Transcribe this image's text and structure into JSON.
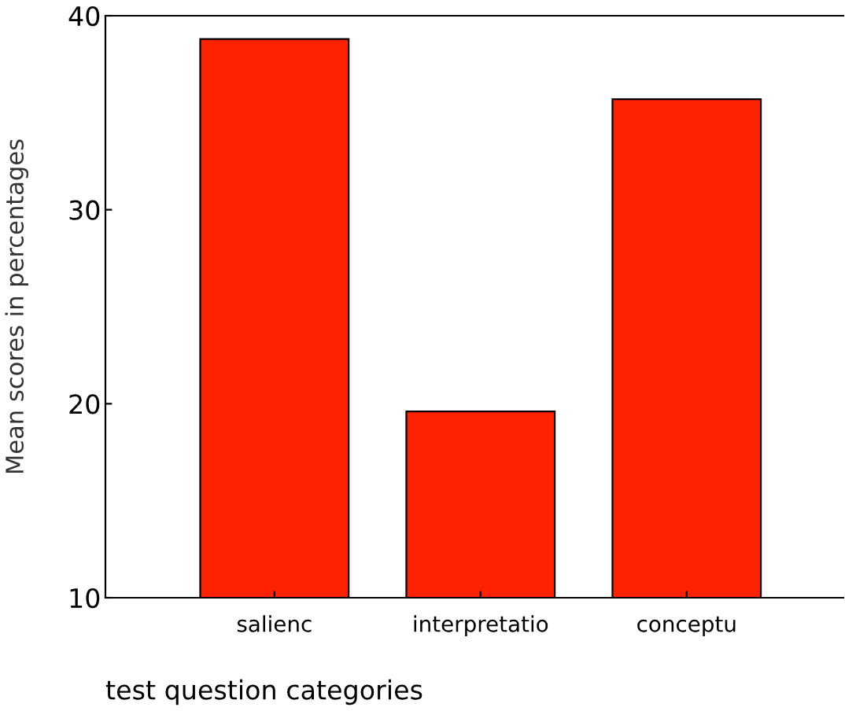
{
  "chart_data": {
    "type": "bar",
    "xlabel": "test question categories",
    "ylabel": "Mean scores in percentages",
    "categories": [
      "salienc",
      "interpretatio",
      "conceptu"
    ],
    "values": [
      38.8,
      19.6,
      35.7
    ],
    "color": "#ff2200",
    "ylim": [
      10,
      40
    ],
    "yticks": [
      10,
      20,
      30,
      40
    ],
    "grid": false,
    "legend": false
  }
}
